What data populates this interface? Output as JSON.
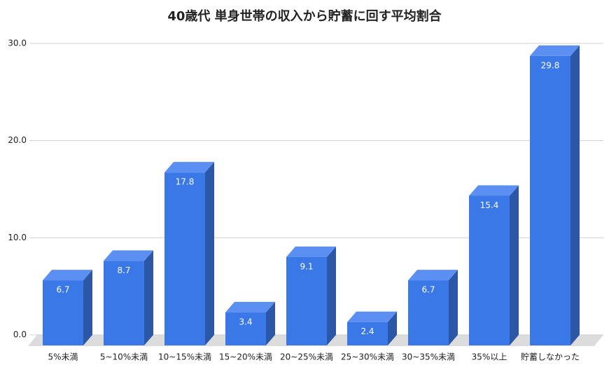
{
  "chart_data": {
    "type": "bar",
    "title": "40歳代 単身世帯の収入から貯蓄に回す平均割合",
    "categories": [
      "5%未満",
      "5~10%未満",
      "10~15%未満",
      "15~20%未満",
      "20~25%未満",
      "25~30%未満",
      "30~35%未満",
      "35%以上",
      "貯蓄しなかった"
    ],
    "values": [
      6.7,
      8.7,
      17.8,
      3.4,
      9.1,
      2.4,
      6.7,
      15.4,
      29.8
    ],
    "color": "#3b78e7",
    "ylim": [
      0,
      30
    ],
    "yticks": [
      {
        "value": 0,
        "label": "0.0"
      },
      {
        "value": 10,
        "label": "10.0"
      },
      {
        "value": 20,
        "label": "20.0"
      },
      {
        "value": 30,
        "label": "30.0"
      }
    ],
    "grid": true
  }
}
